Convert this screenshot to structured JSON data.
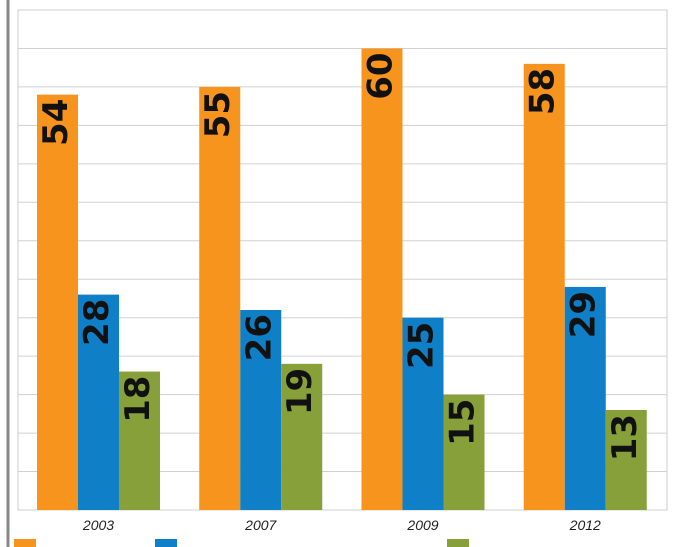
{
  "chart_data": {
    "type": "bar",
    "categories": [
      "2003",
      "2007",
      "2009",
      "2012"
    ],
    "series": [
      {
        "color": "#f7941d",
        "values": [
          54,
          55,
          60,
          58
        ]
      },
      {
        "color": "#0f7fc7",
        "values": [
          28,
          26,
          25,
          29
        ]
      },
      {
        "color": "#88a03a",
        "values": [
          18,
          19,
          15,
          13
        ]
      }
    ],
    "ylim": [
      0,
      65
    ],
    "yticks": [
      0,
      5,
      10,
      15,
      20,
      25,
      30,
      35,
      40,
      45,
      50,
      55,
      60,
      65
    ],
    "grid": true
  }
}
